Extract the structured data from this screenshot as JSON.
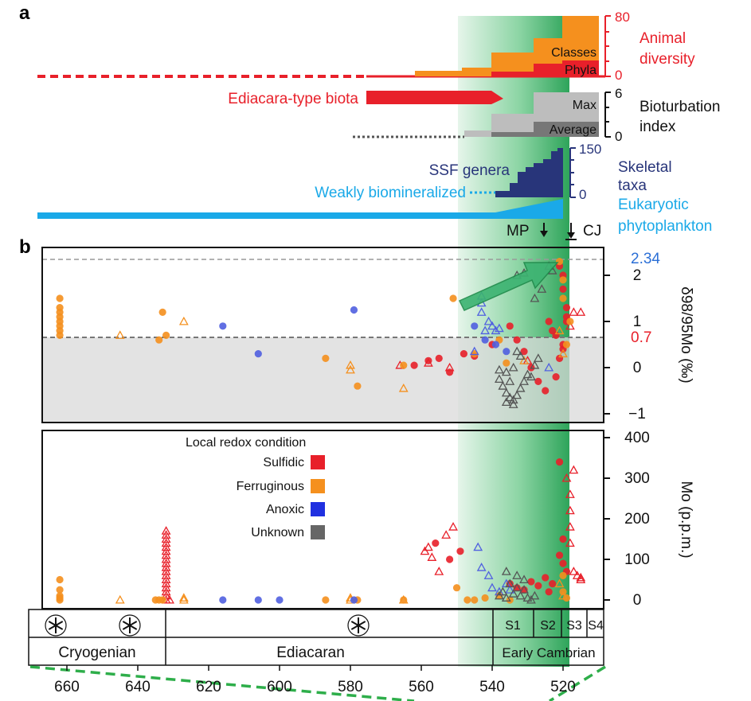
{
  "panels": {
    "a": "a",
    "b": "b"
  },
  "colors": {
    "red": "#e8202a",
    "orange": "#f5901e",
    "blue": "#5060e0",
    "gray": "#555555",
    "navy": "#28357a",
    "cyan": "#1aa9e8",
    "green": "#1e9e4a",
    "accent_blue": "#2b6fd6"
  },
  "panel_a": {
    "animal": {
      "axis_ticks": [
        "80",
        "0"
      ],
      "label_line1": "Animal",
      "label_line2": "diversity",
      "classes_label": "Classes",
      "phyla_label": "Phyla"
    },
    "ediacara_label": "Ediacara-type biota",
    "bioturbation": {
      "axis_ticks": [
        "6",
        "0"
      ],
      "label_line1": "Bioturbation",
      "label_line2": "index",
      "max_label": "Max",
      "average_label": "Average"
    },
    "skeletal": {
      "ssf_label": "SSF genera",
      "axis_ticks": [
        "150",
        "0"
      ],
      "label_line1": "Skeletal",
      "label_line2": "taxa",
      "weak_label": "Weakly biomineralized"
    },
    "eukaryotic": {
      "label_line1": "Eukaryotic",
      "label_line2": "phytoplankton"
    },
    "events": {
      "mp": "MP",
      "cj": "CJ"
    }
  },
  "legend": {
    "title": "Local redox condition",
    "items": [
      {
        "label": "Sulfidic",
        "color": "#e8202a"
      },
      {
        "label": "Ferruginous",
        "color": "#f5901e"
      },
      {
        "label": "Anoxic",
        "color": "#2030e0"
      },
      {
        "label": "Unknown",
        "color": "#666666"
      }
    ]
  },
  "timescale": {
    "stages": [
      "S1",
      "S2",
      "S3",
      "S4"
    ],
    "periods": [
      "Cryogenian",
      "Ediacaran",
      "Early Cambrian"
    ]
  },
  "chart_data": [
    {
      "type": "scatter",
      "title": "",
      "ylabel": "δ98/95Mo (‰)",
      "xlabel": "",
      "xlim": [
        675,
        508
      ],
      "ylim": [
        -1.1,
        2.6
      ],
      "yticks": [
        "2",
        "1",
        "0",
        "−1"
      ],
      "reference_lines": [
        {
          "value": 2.34,
          "label": "2.34"
        },
        {
          "value": 0.7,
          "label": "0.7"
        }
      ],
      "series": [
        {
          "name": "Sulfidic",
          "marker": "circle",
          "points": [
            [
              562,
              0.05
            ],
            [
              558,
              0.15
            ],
            [
              555,
              0.2
            ],
            [
              552,
              -0.1
            ],
            [
              548,
              0.3
            ],
            [
              545,
              0.25
            ],
            [
              540,
              0.5
            ],
            [
              535,
              0.9
            ],
            [
              533,
              0.6
            ],
            [
              531,
              0.35
            ],
            [
              529,
              0.0
            ],
            [
              527,
              -0.3
            ],
            [
              525,
              -0.5
            ],
            [
              524,
              1.0
            ],
            [
              523,
              0.8
            ],
            [
              522,
              -0.2
            ],
            [
              521,
              2.2
            ],
            [
              520,
              2.0
            ],
            [
              520,
              1.7
            ],
            [
              519,
              1.3
            ],
            [
              519,
              1.1
            ],
            [
              519,
              1.0
            ],
            [
              520,
              0.4
            ],
            [
              521,
              0.2
            ],
            [
              522,
              0.7
            ],
            [
              520,
              0.5
            ]
          ]
        },
        {
          "name": "Sulfidic",
          "marker": "triangle",
          "points": [
            [
              566,
              0.05
            ],
            [
              558,
              0.1
            ],
            [
              552,
              0.0
            ],
            [
              530,
              0.15
            ],
            [
              517,
              1.2
            ],
            [
              515,
              1.2
            ],
            [
              518,
              0.9
            ]
          ]
        },
        {
          "name": "Ferruginous",
          "marker": "circle",
          "points": [
            [
              662,
              1.5
            ],
            [
              662,
              1.3
            ],
            [
              662,
              1.2
            ],
            [
              662,
              1.1
            ],
            [
              662,
              1.0
            ],
            [
              662,
              0.9
            ],
            [
              662,
              0.8
            ],
            [
              662,
              0.7
            ],
            [
              634,
              0.6
            ],
            [
              633,
              1.2
            ],
            [
              632,
              0.7
            ],
            [
              587,
              0.2
            ],
            [
              578,
              -0.4
            ],
            [
              565,
              0.05
            ],
            [
              551,
              1.5
            ],
            [
              545,
              0.3
            ],
            [
              538,
              0.6
            ],
            [
              536,
              0.1
            ],
            [
              521,
              2.3
            ],
            [
              520,
              1.9
            ],
            [
              520,
              1.5
            ],
            [
              519,
              0.5
            ],
            [
              518,
              1.0
            ]
          ]
        },
        {
          "name": "Ferruginous",
          "marker": "triangle",
          "points": [
            [
              645,
              0.7
            ],
            [
              627,
              1.0
            ],
            [
              580,
              0.05
            ],
            [
              580,
              -0.05
            ],
            [
              565,
              -0.45
            ],
            [
              531,
              0.15
            ],
            [
              521,
              0.8
            ],
            [
              520,
              0.3
            ]
          ]
        },
        {
          "name": "Anoxic",
          "marker": "circle",
          "points": [
            [
              616,
              0.9
            ],
            [
              606,
              0.3
            ],
            [
              579,
              1.25
            ],
            [
              545,
              0.9
            ],
            [
              542,
              0.6
            ],
            [
              539,
              0.5
            ],
            [
              536,
              0.35
            ]
          ]
        },
        {
          "name": "Anoxic",
          "marker": "triangle",
          "points": [
            [
              545,
              0.35
            ],
            [
              543,
              1.2
            ],
            [
              543,
              1.4
            ],
            [
              543,
              1.55
            ],
            [
              542,
              0.8
            ],
            [
              541,
              1.0
            ],
            [
              540,
              0.9
            ],
            [
              539,
              0.8
            ],
            [
              538,
              0.85
            ],
            [
              524,
              0.0
            ]
          ]
        },
        {
          "name": "Unknown",
          "marker": "triangle",
          "points": [
            [
              533,
              2.0
            ],
            [
              531,
              2.05
            ],
            [
              528,
              1.5
            ],
            [
              526,
              1.7
            ],
            [
              524,
              2.2
            ],
            [
              523,
              2.1
            ],
            [
              538,
              -0.25
            ],
            [
              537,
              -0.4
            ],
            [
              536,
              -0.55
            ],
            [
              535,
              -0.65
            ],
            [
              534,
              -0.7
            ],
            [
              533,
              -0.6
            ],
            [
              532,
              -0.45
            ],
            [
              531,
              -0.3
            ],
            [
              530,
              -0.15
            ],
            [
              529,
              -0.2
            ],
            [
              528,
              0.05
            ],
            [
              527,
              0.2
            ],
            [
              533,
              0.35
            ],
            [
              532,
              0.25
            ],
            [
              534,
              0.0
            ],
            [
              536,
              -0.1
            ],
            [
              538,
              -0.05
            ],
            [
              535,
              -0.3
            ],
            [
              536,
              -0.75
            ],
            [
              534,
              -0.8
            ]
          ]
        }
      ]
    },
    {
      "type": "scatter",
      "title": "",
      "ylabel": "Mo (p.p.m.)",
      "xlabel": "",
      "xlim": [
        675,
        508
      ],
      "ylim": [
        0,
        400
      ],
      "yticks": [
        "400",
        "300",
        "200",
        "100",
        "0"
      ],
      "xticks": [
        "660",
        "640",
        "620",
        "600",
        "580",
        "560",
        "540",
        "520"
      ],
      "series": [
        {
          "name": "Sulfidic",
          "marker": "circle",
          "points": [
            [
              556,
              140
            ],
            [
              552,
              100
            ],
            [
              549,
              120
            ],
            [
              535,
              40
            ],
            [
              533,
              30
            ],
            [
              531,
              25
            ],
            [
              529,
              45
            ],
            [
              527,
              35
            ],
            [
              525,
              55
            ],
            [
              524,
              20
            ],
            [
              523,
              40
            ],
            [
              521,
              110
            ],
            [
              521,
              340
            ],
            [
              520,
              90
            ],
            [
              520,
              150
            ],
            [
              519,
              70
            ]
          ]
        },
        {
          "name": "Sulfidic",
          "marker": "triangle",
          "points": [
            [
              632,
              170
            ],
            [
              632,
              160
            ],
            [
              632,
              150
            ],
            [
              632,
              140
            ],
            [
              632,
              130
            ],
            [
              632,
              120
            ],
            [
              632,
              110
            ],
            [
              632,
              100
            ],
            [
              632,
              90
            ],
            [
              632,
              80
            ],
            [
              632,
              70
            ],
            [
              632,
              60
            ],
            [
              632,
              50
            ],
            [
              632,
              40
            ],
            [
              632,
              30
            ],
            [
              632,
              20
            ],
            [
              632,
              10
            ],
            [
              632,
              0
            ],
            [
              631,
              0
            ],
            [
              559,
              120
            ],
            [
              558,
              130
            ],
            [
              557,
              105
            ],
            [
              555,
              70
            ],
            [
              553,
              160
            ],
            [
              551,
              180
            ],
            [
              519,
              300
            ],
            [
              518,
              260
            ],
            [
              518,
              220
            ],
            [
              518,
              180
            ],
            [
              517,
              320
            ],
            [
              518,
              140
            ],
            [
              517,
              70
            ],
            [
              516,
              60
            ],
            [
              515,
              50
            ],
            [
              515,
              55
            ]
          ]
        },
        {
          "name": "Ferruginous",
          "marker": "circle",
          "points": [
            [
              662,
              50
            ],
            [
              662,
              25
            ],
            [
              662,
              10
            ],
            [
              662,
              5
            ],
            [
              662,
              0
            ],
            [
              635,
              0
            ],
            [
              634,
              0
            ],
            [
              633,
              0
            ],
            [
              587,
              0
            ],
            [
              578,
              0
            ],
            [
              565,
              0
            ],
            [
              550,
              30
            ],
            [
              547,
              0
            ],
            [
              545,
              0
            ],
            [
              542,
              5
            ],
            [
              538,
              10
            ],
            [
              535,
              0
            ],
            [
              520,
              60
            ],
            [
              520,
              20
            ],
            [
              519,
              5
            ]
          ]
        },
        {
          "name": "Ferruginous",
          "marker": "triangle",
          "points": [
            [
              645,
              0
            ],
            [
              627,
              5
            ],
            [
              627,
              0
            ],
            [
              580,
              5
            ],
            [
              580,
              0
            ],
            [
              565,
              0
            ],
            [
              521,
              40
            ],
            [
              520,
              10
            ]
          ]
        },
        {
          "name": "Anoxic",
          "marker": "circle",
          "points": [
            [
              616,
              0
            ],
            [
              606,
              0
            ],
            [
              600,
              0
            ],
            [
              579,
              0
            ]
          ]
        },
        {
          "name": "Anoxic",
          "marker": "triangle",
          "points": [
            [
              544,
              130
            ],
            [
              543,
              80
            ],
            [
              541,
              60
            ],
            [
              540,
              30
            ],
            [
              538,
              20
            ],
            [
              536,
              40
            ],
            [
              535,
              25
            ]
          ]
        },
        {
          "name": "Unknown",
          "marker": "triangle",
          "points": [
            [
              538,
              10
            ],
            [
              537,
              20
            ],
            [
              536,
              5
            ],
            [
              535,
              40
            ],
            [
              534,
              15
            ],
            [
              533,
              30
            ],
            [
              532,
              10
            ],
            [
              531,
              25
            ],
            [
              530,
              5
            ],
            [
              529,
              0
            ],
            [
              528,
              10
            ],
            [
              536,
              70
            ],
            [
              533,
              60
            ],
            [
              531,
              50
            ]
          ]
        }
      ]
    }
  ]
}
